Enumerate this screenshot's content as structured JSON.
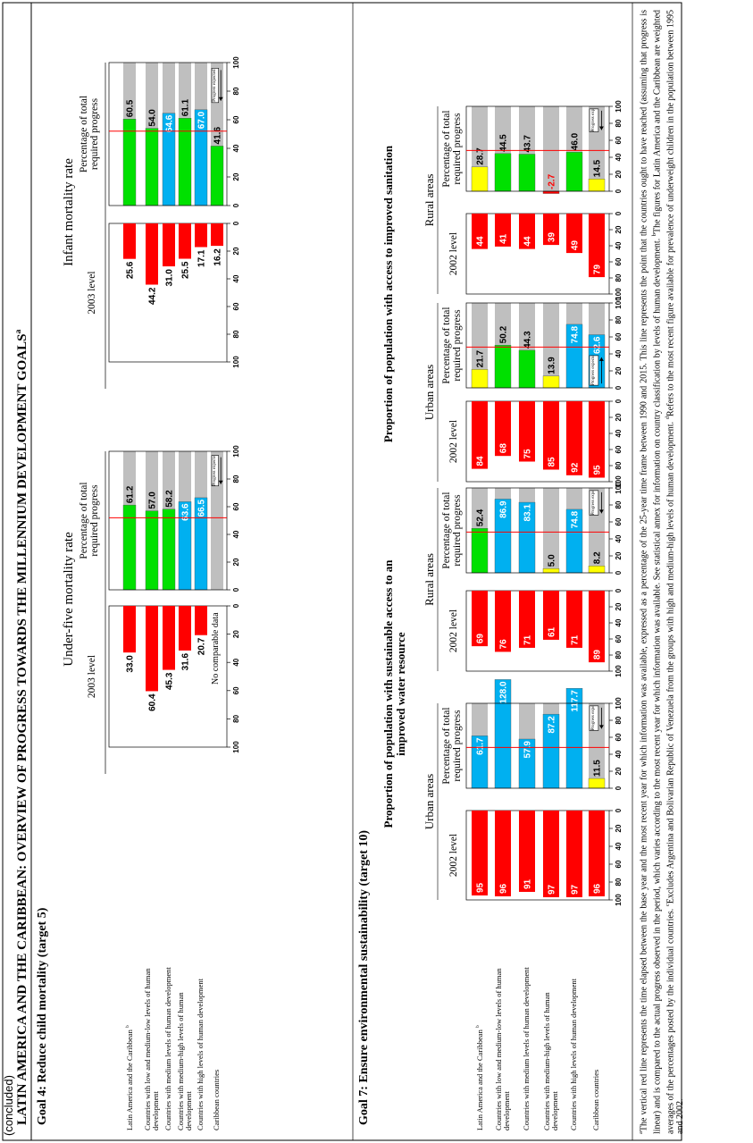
{
  "header": {
    "continued": "(concluded)",
    "title": "LATIN AMERICA AND THE CARIBBEAN: OVERVIEW OF PROGRESS TOWARDS THE MILLENNIUM DEVELOPMENT GOALS",
    "title_note": "a"
  },
  "rows": [
    {
      "label": "Latin America and the Caribbean",
      "note": "b"
    },
    {
      "label": "Countries with low and medium-low levels of human development"
    },
    {
      "label": "Countries with medium levels of human development"
    },
    {
      "label": "Countries with medium-high levels of human development"
    },
    {
      "label": "Countries with high levels of human development"
    },
    {
      "label": "Caribbean countries"
    }
  ],
  "progress_note": "Progress expected",
  "goal4": {
    "title": "Goal 4: Reduce child mortality (target 5)",
    "expected_progress": 52,
    "xlim": [
      0,
      100
    ],
    "ticks": [
      0,
      20,
      40,
      60,
      80,
      100
    ],
    "indicators": [
      {
        "title": "Under-five mortality rate",
        "level_header": "2003 level",
        "pct_header": "Percentage of total required progress",
        "level_values": [
          33.0,
          60.4,
          45.3,
          31.6,
          20.7,
          null
        ],
        "level_value_labels": [
          "33.0",
          "60.4",
          "45.3",
          "31.6",
          "20.7",
          null
        ],
        "pct_values": [
          61.2,
          57.0,
          58.2,
          63.6,
          66.5,
          null
        ],
        "pct_value_labels": [
          "61.2",
          "57.0",
          "58.2",
          "63.6",
          "66.5",
          null
        ],
        "pct_colors": [
          "#00e000",
          "#00e000",
          "#00e000",
          "#00b0f0",
          "#00b0f0",
          null
        ],
        "missing_note": "No comparable data"
      },
      {
        "title": "Infant mortality rate",
        "level_header": "2003 level",
        "pct_header": "Percentage of total required progress",
        "level_values": [
          25.6,
          44.2,
          31.0,
          25.5,
          17.1,
          16.2
        ],
        "level_value_labels": [
          "25.6",
          "44.2",
          "31.0",
          "25.5",
          "17.1",
          "16.2"
        ],
        "pct_values": [
          60.5,
          54.0,
          64.6,
          61.1,
          67.0,
          41.6
        ],
        "pct_value_labels": [
          "60.5",
          "54.0",
          "64.6",
          "61.1",
          "67.0",
          "41.6"
        ],
        "pct_colors": [
          "#00e000",
          "#00e000",
          "#00b0f0",
          "#00e000",
          "#00b0f0",
          "#00e000"
        ]
      }
    ]
  },
  "goal7": {
    "title": "Goal 7: Ensure environmental sustainability (target 10)",
    "expected_progress": 48,
    "xlim": [
      0,
      100
    ],
    "ticks": [
      0,
      20,
      40,
      60,
      80,
      100
    ],
    "indicators": [
      {
        "title": "Proportion of population with sustainable access to an improved water resource",
        "areas": [
          {
            "name": "Urban areas",
            "level_header": "2002 level",
            "pct_header": "Percentage of total required progress",
            "level_values": [
              95,
              96,
              91,
              97,
              97,
              96
            ],
            "pct_values": [
              61.7,
              128.0,
              57.9,
              87.2,
              117.7,
              11.5
            ],
            "pct_value_labels": [
              "61.7",
              "128.0",
              "57.9",
              "87.2",
              "117.7",
              "11.5"
            ],
            "pct_colors": [
              "#00b0f0",
              "#00b0f0",
              "#00b0f0",
              "#00b0f0",
              "#00b0f0",
              "#ffff00"
            ]
          },
          {
            "name": "Rural areas",
            "level_header": "2002 level",
            "pct_header": "Percentage of total required progress",
            "level_values": [
              69,
              76,
              71,
              61,
              71,
              89
            ],
            "pct_values": [
              52.4,
              86.9,
              83.1,
              5.0,
              74.8,
              8.2
            ],
            "pct_value_labels": [
              "52.4",
              "86.9",
              "83.1",
              "5.0",
              "74.8",
              "8.2"
            ],
            "pct_colors": [
              "#00e000",
              "#00b0f0",
              "#00b0f0",
              "#ffff00",
              "#00b0f0",
              "#ffff00"
            ]
          }
        ]
      },
      {
        "title": "Proportion of population with access to improved sanitation",
        "areas": [
          {
            "name": "Urban areas",
            "level_header": "2002 level",
            "pct_header": "Percentage of total required progress",
            "level_values": [
              84,
              68,
              75,
              85,
              92,
              95
            ],
            "pct_values": [
              21.7,
              50.2,
              44.3,
              13.9,
              74.8,
              62.6
            ],
            "pct_value_labels": [
              "21.7",
              "50.2",
              "44.3",
              "13.9",
              "74.8",
              "62.6"
            ],
            "pct_colors": [
              "#ffff00",
              "#00e000",
              "#00e000",
              "#ffff00",
              "#00b0f0",
              "#00b0f0"
            ]
          },
          {
            "name": "Rural areas",
            "level_header": "2002 level",
            "pct_header": "Percentage of total required progress",
            "level_values": [
              44,
              41,
              44,
              39,
              49,
              79
            ],
            "pct_values": [
              28.7,
              44.5,
              43.7,
              -2.7,
              46.0,
              14.5
            ],
            "pct_value_labels": [
              "28.7",
              "44.5",
              "43.7",
              "-2.7",
              "46.0",
              "14.5"
            ],
            "pct_colors": [
              "#ffff00",
              "#00e000",
              "#00e000",
              "#ff0000",
              "#00e000",
              "#ffff00"
            ]
          }
        ]
      }
    ]
  },
  "footnotes": [
    {
      "mark": "a",
      "text": "The vertical red line represents the time elapsed between the base year and the most recent year for which information was available, expressed as a percentage of the 25-year time frame between 1990 and 2015. This line represents the point that the countries ought to have reached (assuming that progress is linear) and is compared to the actual progress observed in the period, which varies according to the most recent year for which information was available. See statistical annex for information on country classification by levels of human development."
    },
    {
      "mark": "b",
      "text": "The figures for Latin America and the Caribbean are weighted averages of the percentages posted by the individual countries."
    },
    {
      "mark": "c",
      "text": "Excludes Argentina and Bolivarian Republic of Venezuela from the groups with high and medium-high levels of human development."
    },
    {
      "mark": "d",
      "text": "Refers to the most recent figure available for prevalence of underweight children in the population between 1995 and 2002."
    }
  ]
}
